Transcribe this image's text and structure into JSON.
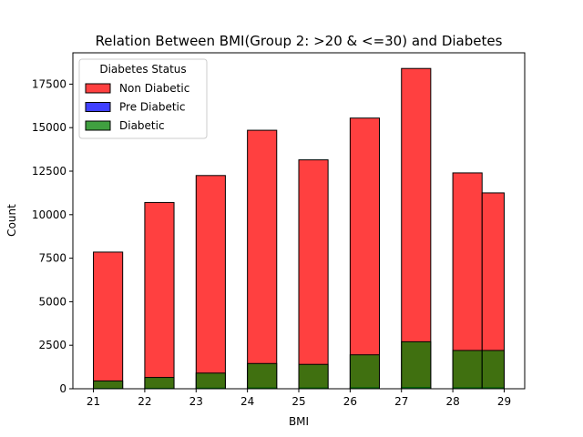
{
  "chart_data": {
    "type": "bar",
    "title": "Relation Between BMI(Group 2: >20 & <=30) and Diabetes",
    "xlabel": "BMI",
    "ylabel": "Count",
    "xlim": [
      20.6,
      29.4
    ],
    "ylim": [
      0,
      19300
    ],
    "x_ticks": [
      21,
      22,
      23,
      24,
      25,
      26,
      27,
      28,
      29
    ],
    "y_ticks": [
      0,
      2500,
      5000,
      7500,
      10000,
      12500,
      15000,
      17500
    ],
    "grid": false,
    "stacked": false,
    "legend": {
      "title": "Diabetes Status",
      "placement": "upper-left",
      "entries": [
        "Non Diabetic",
        "Pre Diabetic",
        "Diabetic"
      ]
    },
    "bins": [
      {
        "start": 21.0,
        "end": 21.57
      },
      {
        "start": 22.0,
        "end": 22.57
      },
      {
        "start": 23.0,
        "end": 23.57
      },
      {
        "start": 24.0,
        "end": 24.57
      },
      {
        "start": 25.0,
        "end": 25.57
      },
      {
        "start": 26.0,
        "end": 26.57
      },
      {
        "start": 27.0,
        "end": 27.57
      },
      {
        "start": 28.0,
        "end": 28.57
      },
      {
        "start": 28.57,
        "end": 29.0
      }
    ],
    "series": [
      {
        "name": "Non Diabetic",
        "color": "#ff0000",
        "values": [
          7850,
          10700,
          12250,
          14850,
          13150,
          15550,
          18400,
          12400,
          11250
        ]
      },
      {
        "name": "Pre Diabetic",
        "color": "#0000ff",
        "values": [
          20,
          30,
          40,
          50,
          50,
          60,
          80,
          60,
          60
        ]
      },
      {
        "name": "Diabetic",
        "color": "#008000",
        "values": [
          450,
          650,
          900,
          1450,
          1400,
          1950,
          2700,
          2200,
          2200
        ]
      }
    ]
  }
}
